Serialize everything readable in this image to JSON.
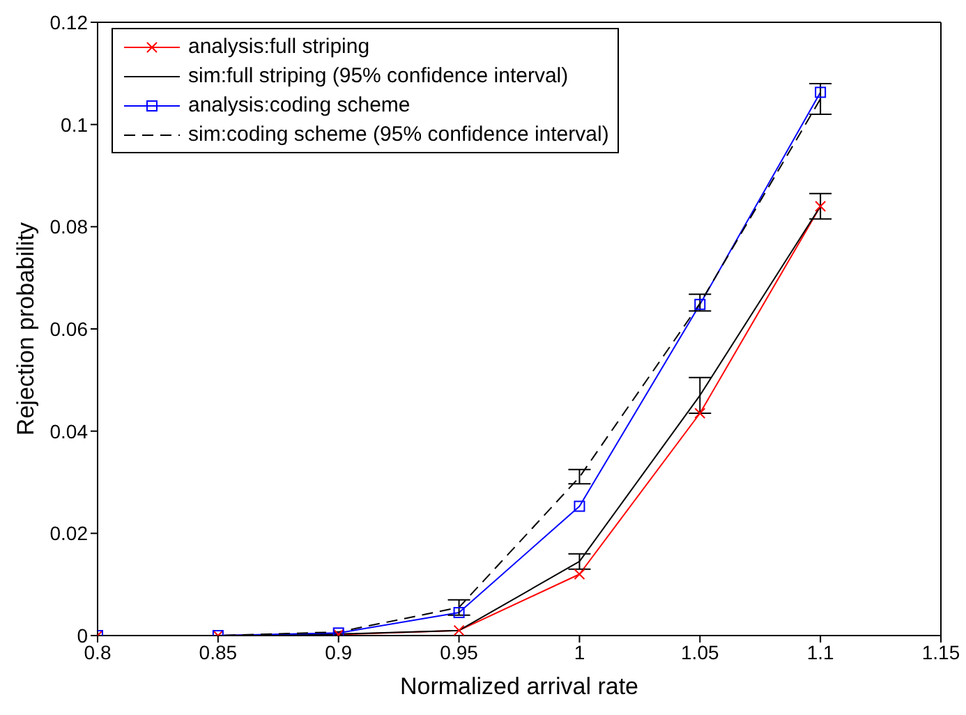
{
  "chart_data": {
    "type": "line",
    "xlabel": "Normalized arrival rate",
    "ylabel": "Rejection probability",
    "x": [
      0.8,
      0.85,
      0.9,
      0.95,
      1.0,
      1.05,
      1.1
    ],
    "xlim": [
      0.8,
      1.15
    ],
    "xticks": [
      0.8,
      0.85,
      0.9,
      0.95,
      1,
      1.05,
      1.1,
      1.15
    ],
    "ylim": [
      0,
      0.12
    ],
    "yticks": [
      0,
      0.02,
      0.04,
      0.06,
      0.08,
      0.1,
      0.12
    ],
    "grid": false,
    "legend": "top left",
    "series": [
      {
        "name": "analysis:full striping",
        "color": "#ff0000",
        "marker": "cross",
        "line_style": "solid",
        "values": [
          0,
          0,
          0.0002,
          0.001,
          0.012,
          0.0435,
          0.084
        ]
      },
      {
        "name": "sim:full striping (95% confidence interval)",
        "color": "#000000",
        "marker": "none",
        "line_style": "solid",
        "values": [
          0,
          0,
          0.0003,
          0.001,
          0.0145,
          0.047,
          0.084
        ],
        "errors": [
          null,
          null,
          null,
          null,
          [
            0.013,
            0.016
          ],
          [
            0.0435,
            0.0505
          ],
          [
            0.0815,
            0.0865
          ]
        ]
      },
      {
        "name": "analysis:coding scheme",
        "color": "#0000ff",
        "marker": "square",
        "line_style": "solid",
        "values": [
          0,
          0,
          0.0005,
          0.0045,
          0.0253,
          0.0648,
          0.1063
        ]
      },
      {
        "name": "sim:coding scheme (95% confidence interval)",
        "color": "#000000",
        "marker": "none",
        "line_style": "dashed",
        "values": [
          0,
          0,
          0.0007,
          0.0055,
          0.031,
          0.065,
          0.105
        ],
        "errors": [
          null,
          null,
          null,
          [
            0.004,
            0.007
          ],
          [
            0.0297,
            0.0325
          ],
          [
            0.0635,
            0.0668
          ],
          [
            0.102,
            0.108
          ]
        ]
      }
    ]
  }
}
